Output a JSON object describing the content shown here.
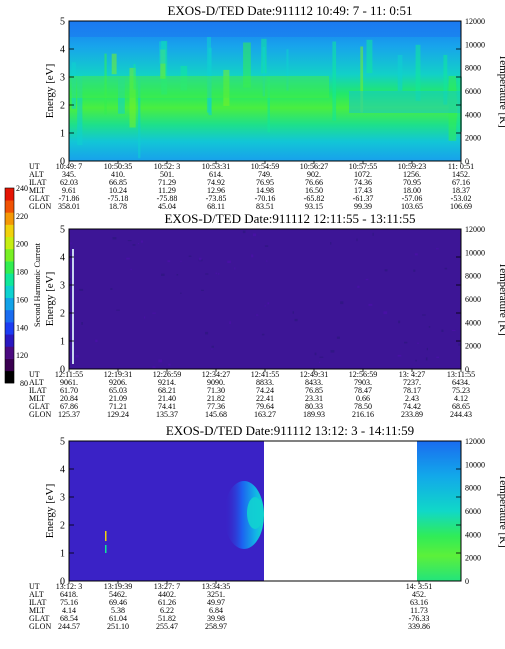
{
  "colors": {
    "cb": [
      "#000000",
      "#3a0050",
      "#4b0a80",
      "#2a18c0",
      "#1c3cf2",
      "#1a6cf0",
      "#12a2e8",
      "#0ed2d0",
      "#10e89a",
      "#32ee50",
      "#78f024",
      "#c6ee12",
      "#f0d20c",
      "#f49806",
      "#f05204",
      "#e41404"
    ],
    "panel2_bg": "#3d1596",
    "panel3_bg": "#3a22c6",
    "p1_base": "#1b90ea"
  },
  "colorbar": {
    "label": "Second Harmonic Current",
    "ticks": [
      "80",
      "120",
      "140",
      "160",
      "180",
      "200",
      "220",
      "240"
    ]
  },
  "chart_data": [
    {
      "type": "heatmap",
      "title": "EXOS-D/TED  Date:911112  10:49: 7 - 11: 0:51",
      "ylabel": "Energy [eV]",
      "ylabel_right": "Temperature [K]",
      "ylim": [
        0,
        5
      ],
      "yticks": [
        "0",
        "1",
        "2",
        "3",
        "4",
        "5"
      ],
      "yticks_right": [
        "0",
        "2000",
        "4000",
        "6000",
        "8000",
        "10000",
        "12000"
      ],
      "ylim_right": [
        0,
        12000
      ],
      "orbit_rows": [
        "UT",
        "ALT",
        "ILAT",
        "MLT",
        "GLAT",
        "GLON"
      ],
      "orbit_cols": [
        [
          "10:49: 7",
          "345.",
          "62.03",
          "9.61",
          "-71.86",
          "358.01"
        ],
        [
          "10:50:35",
          "410.",
          "66.85",
          "10.24",
          "-75.18",
          "18.78"
        ],
        [
          "10:52: 3",
          "501.",
          "71.29",
          "11.29",
          "-75.88",
          "45.04"
        ],
        [
          "10:53:31",
          "614.",
          "74.92",
          "12.96",
          "-73.85",
          "68.11"
        ],
        [
          "10:54:59",
          "749.",
          "76.95",
          "14.98",
          "-70.16",
          "83.51"
        ],
        [
          "10:56:27",
          "902.",
          "76.66",
          "16.50",
          "-65.82",
          "93.15"
        ],
        [
          "10:57:55",
          "1072.",
          "74.36",
          "17.43",
          "-61.37",
          "99.39"
        ],
        [
          "10:59:23",
          "1256.",
          "70.95",
          "18.00",
          "-57.06",
          "103.65"
        ],
        [
          "11: 0:51",
          "1452.",
          "67.16",
          "18.37",
          "-53.02",
          "106.69"
        ]
      ]
    },
    {
      "type": "heatmap",
      "title": "EXOS-D/TED  Date:911112  12:11:55 - 13:11:55",
      "ylabel": "Energy [eV]",
      "ylabel_right": "Temperature [K]",
      "ylim": [
        0,
        5
      ],
      "yticks": [
        "0",
        "1",
        "2",
        "3",
        "4",
        "5"
      ],
      "yticks_right": [
        "0",
        "2000",
        "4000",
        "6000",
        "8000",
        "10000",
        "12000"
      ],
      "ylim_right": [
        0,
        12000
      ],
      "orbit_rows": [
        "UT",
        "ALT",
        "ILAT",
        "MLT",
        "GLAT",
        "GLON"
      ],
      "orbit_cols": [
        [
          "12:11:55",
          "9061.",
          "61.70",
          "20.84",
          "67.86",
          "125.37"
        ],
        [
          "12:19:31",
          "9206.",
          "65.03",
          "21.09",
          "71.21",
          "129.24"
        ],
        [
          "12:26:59",
          "9214.",
          "68.21",
          "21.40",
          "74.41",
          "135.37"
        ],
        [
          "12:34:27",
          "9090.",
          "71.30",
          "21.82",
          "77.36",
          "145.68"
        ],
        [
          "12:41:55",
          "8833.",
          "74.24",
          "22.41",
          "79.64",
          "163.27"
        ],
        [
          "12:49:31",
          "8433.",
          "76.85",
          "23.31",
          "80.33",
          "189.93"
        ],
        [
          "12:56:59",
          "7903.",
          "78.47",
          "0.66",
          "78.50",
          "216.16"
        ],
        [
          "13: 4:27",
          "7237.",
          "78.17",
          "2.43",
          "74.42",
          "233.89"
        ],
        [
          "13:11:55",
          "6434.",
          "75.23",
          "4.12",
          "68.65",
          "244.43"
        ]
      ]
    },
    {
      "type": "heatmap",
      "title": "EXOS-D/TED  Date:911112  13:12: 3 - 14:11:59",
      "ylabel": "Energy [eV]",
      "ylabel_right": "Temperature [K]",
      "ylim": [
        0,
        5
      ],
      "yticks": [
        "0",
        "1",
        "2",
        "3",
        "4",
        "5"
      ],
      "yticks_right": [
        "0",
        "2000",
        "4000",
        "6000",
        "8000",
        "10000",
        "12000"
      ],
      "ylim_right": [
        0,
        12000
      ],
      "orbit_rows": [
        "UT",
        "ALT",
        "ILAT",
        "MLT",
        "GLAT",
        "GLON"
      ],
      "orbit_cols": [
        [
          "13:12: 3",
          "6418.",
          "75.16",
          "4.14",
          "68.54",
          "244.57"
        ],
        [
          "13:19:39",
          "5462.",
          "69.46",
          "5.38",
          "61.04",
          "251.10"
        ],
        [
          "13:27: 7",
          "4402.",
          "61.26",
          "6.22",
          "51.82",
          "255.47"
        ],
        [
          "13:34:35",
          "3251.",
          "49.97",
          "6.84",
          "39.98",
          "258.97"
        ],
        [
          "14: 3:51",
          "452.",
          "63.16",
          "11.73",
          "-76.33",
          "339.86"
        ]
      ]
    }
  ]
}
